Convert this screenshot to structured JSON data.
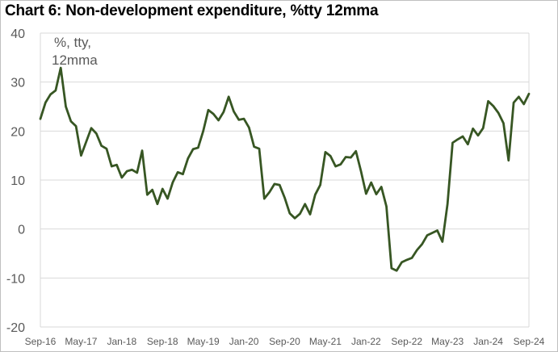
{
  "chart_data": {
    "type": "line",
    "title": "Chart 6: Non-development expenditure, %tty 12mma",
    "annotation": [
      "%, tty,",
      "12mma"
    ],
    "xlabel": "",
    "ylabel": "",
    "ylim": [
      -20,
      40
    ],
    "yticks": [
      40,
      30,
      20,
      10,
      0,
      -10,
      -20
    ],
    "xtick_labels": [
      "Sep-16",
      "May-17",
      "Jan-18",
      "Sep-18",
      "May-19",
      "Jan-20",
      "Sep-20",
      "May-21",
      "Jan-22",
      "Sep-22",
      "May-23",
      "Jan-24",
      "Sep-24"
    ],
    "grid": true,
    "legend": "none",
    "line_color": "#375623",
    "x": [
      "Sep-16",
      "Oct-16",
      "Nov-16",
      "Dec-16",
      "Jan-17",
      "Feb-17",
      "Mar-17",
      "Apr-17",
      "May-17",
      "Jun-17",
      "Jul-17",
      "Aug-17",
      "Sep-17",
      "Oct-17",
      "Nov-17",
      "Dec-17",
      "Jan-18",
      "Feb-18",
      "Mar-18",
      "Apr-18",
      "May-18",
      "Jun-18",
      "Jul-18",
      "Aug-18",
      "Sep-18",
      "Oct-18",
      "Nov-18",
      "Dec-18",
      "Jan-19",
      "Feb-19",
      "Mar-19",
      "Apr-19",
      "May-19",
      "Jun-19",
      "Jul-19",
      "Aug-19",
      "Sep-19",
      "Oct-19",
      "Nov-19",
      "Dec-19",
      "Jan-20",
      "Feb-20",
      "Mar-20",
      "Apr-20",
      "May-20",
      "Jun-20",
      "Jul-20",
      "Aug-20",
      "Sep-20",
      "Oct-20",
      "Nov-20",
      "Dec-20",
      "Jan-21",
      "Feb-21",
      "Mar-21",
      "Apr-21",
      "May-21",
      "Jun-21",
      "Jul-21",
      "Aug-21",
      "Sep-21",
      "Oct-21",
      "Nov-21",
      "Dec-21",
      "Jan-22",
      "Feb-22",
      "Mar-22",
      "Apr-22",
      "May-22",
      "Jun-22",
      "Jul-22",
      "Aug-22",
      "Sep-22",
      "Oct-22",
      "Nov-22",
      "Dec-22",
      "Jan-23",
      "Feb-23",
      "Mar-23",
      "Apr-23",
      "May-23",
      "Jun-23",
      "Jul-23",
      "Aug-23",
      "Sep-23",
      "Oct-23",
      "Nov-23",
      "Dec-23",
      "Jan-24",
      "Feb-24",
      "Mar-24",
      "Apr-24",
      "May-24",
      "Jun-24",
      "Jul-24",
      "Aug-24",
      "Sep-24"
    ],
    "series": [
      {
        "values": [
          22.5,
          25.8,
          27.5,
          28.3,
          32.9,
          25.0,
          22.0,
          21.0,
          15.0,
          17.8,
          20.6,
          19.5,
          17.0,
          16.4,
          12.8,
          13.1,
          10.5,
          11.8,
          12.1,
          11.5,
          16.0,
          7.0,
          8.0,
          5.1,
          8.2,
          6.2,
          9.5,
          11.6,
          11.2,
          14.4,
          16.3,
          16.6,
          20.0,
          24.3,
          23.5,
          22.2,
          23.9,
          27.0,
          24.0,
          22.3,
          22.5,
          20.7,
          16.8,
          16.4,
          6.2,
          7.5,
          9.2,
          9.0,
          6.4,
          3.2,
          2.2,
          3.1,
          5.1,
          3.0,
          7.0,
          9.0,
          15.7,
          14.9,
          12.8,
          13.2,
          14.7,
          14.6,
          15.9,
          11.8,
          7.2,
          9.5,
          7.1,
          8.6,
          4.6,
          -8.0,
          -8.5,
          -6.8,
          -6.3,
          -5.9,
          -4.3,
          -3.1,
          -1.3,
          -0.8,
          -0.3,
          -2.6,
          5.1,
          17.6,
          18.3,
          18.9,
          17.3,
          20.5,
          19.1,
          20.6,
          26.1,
          25.1,
          23.7,
          21.6,
          14.0,
          25.8,
          27.0,
          25.5,
          27.6
        ]
      }
    ]
  }
}
